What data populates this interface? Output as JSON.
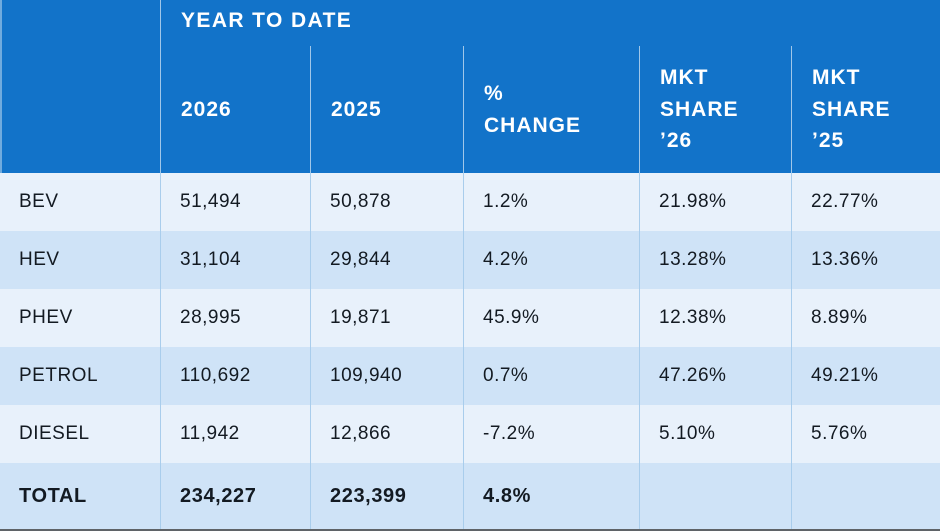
{
  "table": {
    "group_header": "YEAR TO DATE",
    "headers": [
      "2026",
      "2025",
      "%\nCHANGE",
      "MKT\nSHARE\n’26",
      "MKT\nSHARE\n’25"
    ],
    "rows": [
      {
        "label": "BEV",
        "cells": [
          "51,494",
          "50,878",
          "1.2%",
          "21.98%",
          "22.77%"
        ]
      },
      {
        "label": "HEV",
        "cells": [
          "31,104",
          "29,844",
          "4.2%",
          "13.28%",
          "13.36%"
        ]
      },
      {
        "label": "PHEV",
        "cells": [
          "28,995",
          "19,871",
          "45.9%",
          "12.38%",
          "8.89%"
        ]
      },
      {
        "label": "PETROL",
        "cells": [
          "110,692",
          "109,940",
          "0.7%",
          "47.26%",
          "49.21%"
        ]
      },
      {
        "label": "DIESEL",
        "cells": [
          "11,942",
          "12,866",
          "-7.2%",
          "5.10%",
          "5.76%"
        ]
      },
      {
        "label": "TOTAL",
        "cells": [
          "234,227",
          "223,399",
          "4.8%",
          "",
          ""
        ]
      }
    ]
  },
  "chart_data": {
    "type": "table",
    "title": "YEAR TO DATE",
    "columns": [
      "",
      "2026",
      "2025",
      "% CHANGE",
      "MKT SHARE ’26",
      "MKT SHARE ’25"
    ],
    "rows": [
      [
        "BEV",
        51494,
        50878,
        "1.2%",
        "21.98%",
        "22.77%"
      ],
      [
        "HEV",
        31104,
        29844,
        "4.2%",
        "13.28%",
        "13.36%"
      ],
      [
        "PHEV",
        28995,
        19871,
        "45.9%",
        "12.38%",
        "8.89%"
      ],
      [
        "PETROL",
        110692,
        109940,
        "0.7%",
        "47.26%",
        "49.21%"
      ],
      [
        "DIESEL",
        11942,
        12866,
        "-7.2%",
        "5.10%",
        "5.76%"
      ],
      [
        "TOTAL",
        234227,
        223399,
        "4.8%",
        "",
        ""
      ]
    ]
  },
  "colors": {
    "header_blue": "#1273c9",
    "row_light": "#e8f1fb",
    "row_alt": "#cfe3f7",
    "grid_line": "#a9cdec",
    "text_dark": "#131a22",
    "header_text": "#ffffff"
  }
}
